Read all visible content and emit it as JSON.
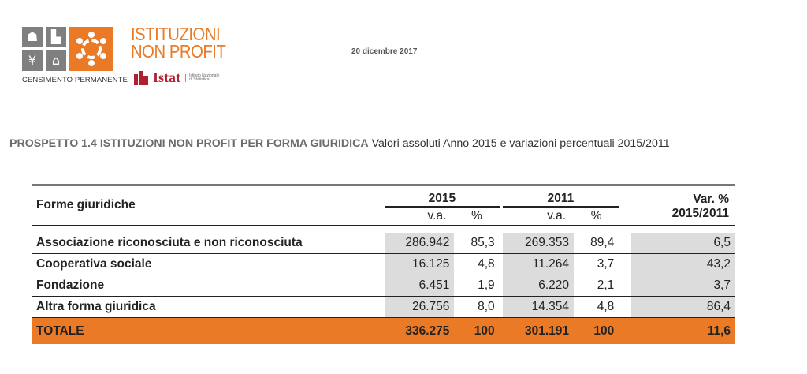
{
  "header": {
    "brand_title": "ISTITUZIONI\nNON PROFIT",
    "census_label": "CENSIMENTO PERMANENTE",
    "istat_label": "Istat",
    "istat_sub": "Istituto Nazionale di Statistica",
    "date": "20 dicembre 2017"
  },
  "heading": {
    "bold": "PROSPETTO 1.4 ISTITUZIONI NON PROFIT PER FORMA GIURIDICA",
    "rest": "Valori assoluti Anno 2015 e variazioni percentuali 2015/2011"
  },
  "table": {
    "col_label": "Forme giuridiche",
    "year_a": "2015",
    "year_b": "2011",
    "var_label": "Var. %",
    "var_period": "2015/2011",
    "va_label": "v.a.",
    "pct_label": "%",
    "rows": [
      {
        "name": "Associazione riconosciuta e non riconosciuta",
        "va2015": "286.942",
        "pct2015": "85,3",
        "va2011": "269.353",
        "pct2011": "89,4",
        "var": "6,5"
      },
      {
        "name": "Cooperativa sociale",
        "va2015": "16.125",
        "pct2015": "4,8",
        "va2011": "11.264",
        "pct2011": "3,7",
        "var": "43,2"
      },
      {
        "name": "Fondazione",
        "va2015": "6.451",
        "pct2015": "1,9",
        "va2011": "6.220",
        "pct2011": "2,1",
        "var": "3,7"
      },
      {
        "name": "Altra forma giuridica",
        "va2015": "26.756",
        "pct2015": "8,0",
        "va2011": "14.354",
        "pct2011": "4,8",
        "var": "86,4"
      }
    ],
    "total": {
      "name": "TOTALE",
      "va2015": "336.275",
      "pct2015": "100",
      "va2011": "301.191",
      "pct2011": "100",
      "var": "11,6"
    }
  },
  "colors": {
    "accent": "#ea7a25",
    "shade": "#dcdcdc",
    "istat_red": "#b01f2f"
  }
}
